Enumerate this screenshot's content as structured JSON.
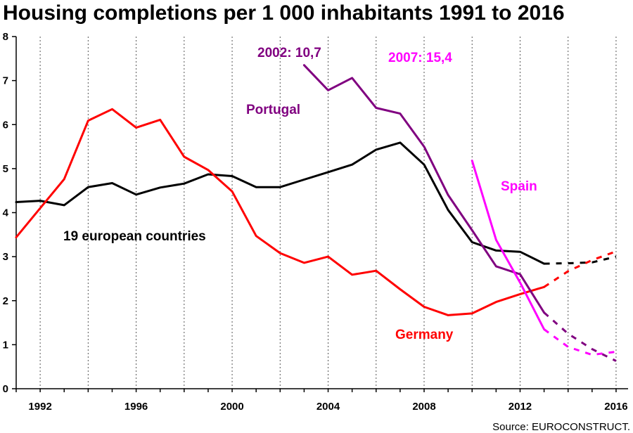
{
  "chart_data": {
    "type": "line",
    "title": "Housing completions per 1 000 inhabitants 1991 to 2016",
    "source": "Source: EUROCONSTRUCT.",
    "xlabel": "",
    "ylabel": "",
    "xlim": [
      1991,
      2016.5
    ],
    "ylim": [
      0,
      8
    ],
    "x_ticks": [
      1992,
      1996,
      2000,
      2004,
      2008,
      2012,
      2016
    ],
    "y_ticks": [
      0,
      1,
      2,
      3,
      4,
      5,
      6,
      7,
      8
    ],
    "grid": "vertical dashed",
    "annotations": [
      {
        "text": "2002: 10,7",
        "color": "#800080"
      },
      {
        "text": "2007: 15,4",
        "color": "#ff00ff"
      }
    ],
    "series": [
      {
        "name": "19 european countries",
        "color": "#000000",
        "x": [
          1991,
          1992,
          1993,
          1994,
          1995,
          1996,
          1997,
          1998,
          1999,
          2000,
          2001,
          2002,
          2003,
          2004,
          2005,
          2006,
          2007,
          2008,
          2009,
          2010,
          2011,
          2012,
          2013
        ],
        "values": [
          4.24,
          4.27,
          4.17,
          4.58,
          4.67,
          4.41,
          4.57,
          4.66,
          4.87,
          4.83,
          4.58,
          4.58,
          4.75,
          4.92,
          5.09,
          5.43,
          5.59,
          5.09,
          4.06,
          3.33,
          3.14,
          3.11,
          2.84
        ],
        "projection_x": [
          2013,
          2014,
          2015,
          2016
        ],
        "projection_values": [
          2.84,
          2.85,
          2.87,
          3.0
        ]
      },
      {
        "name": "Germany",
        "color": "#ff0000",
        "x": [
          1991,
          1992,
          1993,
          1994,
          1995,
          1996,
          1997,
          1998,
          1999,
          2000,
          2001,
          2002,
          2003,
          2004,
          2005,
          2006,
          2007,
          2008,
          2009,
          2010,
          2011,
          2012,
          2013
        ],
        "values": [
          3.44,
          4.1,
          4.76,
          6.09,
          6.35,
          5.93,
          6.11,
          5.27,
          4.97,
          4.48,
          3.47,
          3.08,
          2.86,
          3.0,
          2.59,
          2.68,
          2.26,
          1.86,
          1.67,
          1.71,
          1.97,
          2.15,
          2.31
        ],
        "projection_x": [
          2013,
          2014,
          2015,
          2016
        ],
        "projection_values": [
          2.31,
          2.67,
          2.92,
          3.12
        ]
      },
      {
        "name": "Portugal",
        "color": "#800080",
        "x": [
          2003,
          2004,
          2005,
          2006,
          2007,
          2008,
          2009,
          2010,
          2011,
          2012,
          2013
        ],
        "values": [
          7.35,
          6.78,
          7.06,
          6.38,
          6.25,
          5.5,
          4.4,
          3.6,
          2.78,
          2.6,
          1.73
        ],
        "projection_x": [
          2013,
          2014,
          2015,
          2016
        ],
        "projection_values": [
          1.73,
          1.25,
          0.9,
          0.63
        ]
      },
      {
        "name": "Spain",
        "color": "#ff00ff",
        "x": [
          2010,
          2011,
          2012,
          2013
        ],
        "values": [
          5.18,
          3.38,
          2.41,
          1.35
        ],
        "projection_x": [
          2013,
          2014,
          2015,
          2016
        ],
        "projection_values": [
          1.35,
          0.95,
          0.77,
          0.84
        ]
      }
    ]
  }
}
